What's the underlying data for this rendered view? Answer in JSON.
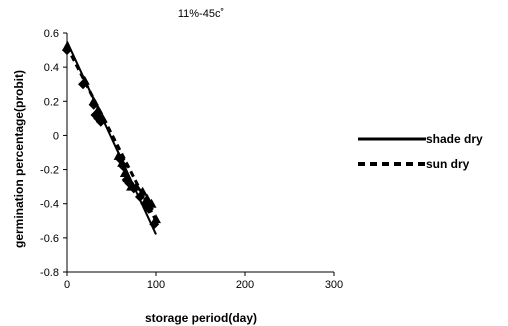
{
  "chart_data": {
    "type": "scatter",
    "title": "11%-45c˚",
    "xlabel": "storage period(day)",
    "ylabel": "germination percentage(probit)",
    "xlim": [
      0,
      300
    ],
    "ylim": [
      -0.8,
      0.6
    ],
    "xticks": [
      "0",
      "100",
      "200",
      "300"
    ],
    "yticks": [
      "0.6",
      "0.4",
      "0.2",
      "0",
      "-0.2",
      "-0.4",
      "-0.6",
      "-0.8"
    ],
    "grid": false,
    "legend_position": "right",
    "series": [
      {
        "name": "shade dry",
        "style": "solid",
        "color": "#000000",
        "points": [
          [
            0,
            0.5
          ],
          [
            18,
            0.3
          ],
          [
            30,
            0.18
          ],
          [
            32,
            0.12
          ],
          [
            35,
            0.1
          ],
          [
            38,
            0.08
          ],
          [
            60,
            -0.14
          ],
          [
            63,
            -0.18
          ],
          [
            67,
            -0.26
          ],
          [
            70,
            -0.28
          ],
          [
            75,
            -0.31
          ],
          [
            82,
            -0.36
          ],
          [
            88,
            -0.4
          ],
          [
            92,
            -0.43
          ],
          [
            98,
            -0.52
          ]
        ],
        "fit": [
          [
            0,
            0.55
          ],
          [
            100,
            -0.58
          ]
        ]
      },
      {
        "name": "sun dry",
        "style": "dashed",
        "color": "#000000",
        "points": [
          [
            0,
            0.52
          ],
          [
            20,
            0.32
          ],
          [
            30,
            0.2
          ],
          [
            35,
            0.15
          ],
          [
            40,
            0.1
          ],
          [
            58,
            -0.12
          ],
          [
            62,
            -0.16
          ],
          [
            65,
            -0.22
          ],
          [
            68,
            -0.25
          ],
          [
            72,
            -0.3
          ],
          [
            78,
            -0.3
          ],
          [
            85,
            -0.33
          ],
          [
            90,
            -0.37
          ],
          [
            95,
            -0.4
          ],
          [
            100,
            -0.49
          ]
        ],
        "fit": [
          [
            0,
            0.52
          ],
          [
            100,
            -0.5
          ]
        ]
      }
    ]
  }
}
